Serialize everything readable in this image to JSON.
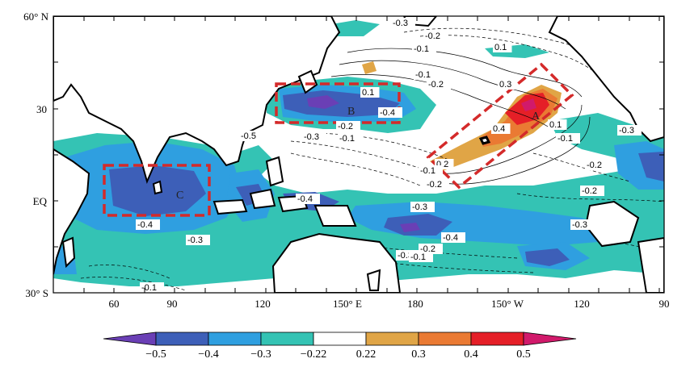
{
  "map": {
    "lat_labels": [
      "60° N",
      "30",
      "EQ",
      "30° S"
    ],
    "lon_labels": [
      "60",
      "90",
      "120",
      "150° E",
      "180",
      "150° W",
      "120",
      "90"
    ],
    "boxes": [
      {
        "label": "A",
        "name": "region-a"
      },
      {
        "label": "B",
        "name": "region-b"
      },
      {
        "label": "C",
        "name": "region-c"
      }
    ],
    "contour_labels": [
      "-0.3",
      "-0.2",
      "-0.1",
      "0.1",
      "-0.1",
      "-0.2",
      "0.1",
      "0.3",
      "0.4",
      "0.1",
      "-0.4",
      "-0.5",
      "-0.3",
      "-0.1",
      "-0.2",
      "0.2",
      "-0.1",
      "-0.2",
      "-0.1",
      "-0.2",
      "-0.3",
      "-0.4",
      "-0.3",
      "-0.4",
      "-0.3",
      "-0.3",
      "-0.4",
      "-0.2",
      "-0.3",
      "-0.1",
      "-0.2",
      "-0.1"
    ],
    "colors": {
      "lt_-0.5": "#6a3fb5",
      "-0.5_-0.4": "#3d5fb8",
      "-0.4_-0.3": "#2f9fe0",
      "-0.3_-0.22": "#34c3b4",
      "-0.22_0.22": "#ffffff",
      "0.22_0.3": "#e0a546",
      "0.3_0.4": "#ea7a33",
      "0.4_0.5": "#e51f27",
      "gt_0.5": "#d11a6b",
      "box": "#d42a2a"
    }
  },
  "colorbar": {
    "labels": [
      "−0.5",
      "−0.4",
      "−0.3",
      "−0.22",
      "0.22",
      "0.3",
      "0.4",
      "0.5"
    ],
    "colors": [
      "#6a3fb5",
      "#3d5fb8",
      "#2f9fe0",
      "#34c3b4",
      "#ffffff",
      "#e0a546",
      "#ea7a33",
      "#e51f27",
      "#d11a6b"
    ]
  }
}
